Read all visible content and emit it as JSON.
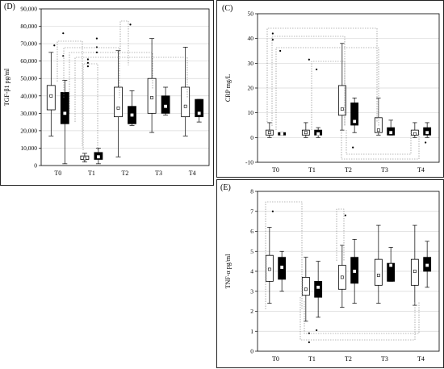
{
  "chart_data": [
    {
      "panel_label": "(D)",
      "type": "box",
      "ylabel": "TGF-β1 pg/ml",
      "ylim": [
        0,
        90000
      ],
      "yticks": [
        0,
        10000,
        20000,
        30000,
        40000,
        50000,
        60000,
        70000,
        80000,
        90000
      ],
      "ytick_labels": [
        "0",
        "10,000",
        "20,000",
        "30,000",
        "40,000",
        "50,000",
        "60,000",
        "70,000",
        "80,000",
        "90,000"
      ],
      "categories": [
        "T0",
        "T1",
        "T2",
        "T3",
        "T4"
      ],
      "grid": true,
      "series": [
        {
          "fill": "#ffffff",
          "boxes": [
            {
              "min": 17000,
              "q1": 32000,
              "median": 40000,
              "q3": 46000,
              "max": 65000,
              "outliers": [
                69000
              ]
            },
            {
              "min": 2000,
              "q1": 3500,
              "median": 4000,
              "q3": 5500,
              "max": 7000,
              "outliers": [
                61000,
                59000,
                57000
              ]
            },
            {
              "min": 5000,
              "q1": 28000,
              "median": 33000,
              "q3": 45000,
              "max": 66000,
              "outliers": []
            },
            {
              "min": 19000,
              "q1": 30000,
              "median": 39000,
              "q3": 50000,
              "max": 73000,
              "outliers": []
            },
            {
              "min": 17000,
              "q1": 28000,
              "median": 34000,
              "q3": 45000,
              "max": 68000,
              "outliers": []
            }
          ]
        },
        {
          "fill": "#000000",
          "boxes": [
            {
              "min": 1000,
              "q1": 24000,
              "median": 30000,
              "q3": 42000,
              "max": 49000,
              "outliers": [
                63000,
                76000
              ]
            },
            {
              "min": 1000,
              "q1": 3500,
              "median": 5000,
              "q3": 7500,
              "max": 10000,
              "outliers": [
                73000,
                68000,
                65000
              ]
            },
            {
              "min": 23000,
              "q1": 24000,
              "median": 29000,
              "q3": 34000,
              "max": 43000,
              "outliers": [
                81000
              ]
            },
            {
              "min": 29000,
              "q1": 30000,
              "median": 34000,
              "q3": 40000,
              "max": 45000,
              "outliers": []
            },
            {
              "min": 25000,
              "q1": 28000,
              "median": 30000,
              "q3": 38000,
              "max": 38000,
              "outliers": []
            }
          ]
        }
      ]
    },
    {
      "panel_label": "(C)",
      "type": "box",
      "ylabel": "CRP mg/L",
      "ylim": [
        -10,
        50
      ],
      "yticks": [
        -10,
        0,
        10,
        20,
        30,
        40,
        50
      ],
      "ytick_labels": [
        "-10",
        "0",
        "10",
        "20",
        "30",
        "40",
        "50"
      ],
      "categories": [
        "T0",
        "T1",
        "T2",
        "T3",
        "T4"
      ],
      "grid": true,
      "series": [
        {
          "fill": "#ffffff",
          "boxes": [
            {
              "min": 0,
              "q1": 1,
              "median": 2,
              "q3": 3,
              "max": 6,
              "outliers": [
                42,
                39.5
              ]
            },
            {
              "min": 0,
              "q1": 1,
              "median": 2,
              "q3": 3,
              "max": 6,
              "outliers": [
                31.5
              ]
            },
            {
              "min": 3,
              "q1": 9,
              "median": 11.5,
              "q3": 21,
              "max": 38,
              "outliers": []
            },
            {
              "min": 1,
              "q1": 2,
              "median": 3,
              "q3": 8,
              "max": 16,
              "outliers": []
            },
            {
              "min": 0,
              "q1": 1,
              "median": 1.5,
              "q3": 3,
              "max": 6,
              "outliers": []
            }
          ]
        },
        {
          "fill": "#000000",
          "boxes": [
            {
              "min": 1,
              "q1": 1,
              "median": 1.5,
              "q3": 2,
              "max": 2,
              "outliers": [
                35
              ]
            },
            {
              "min": 0,
              "q1": 1,
              "median": 1.5,
              "q3": 3,
              "max": 4,
              "outliers": [
                27.5
              ]
            },
            {
              "min": 2,
              "q1": 5,
              "median": 6.5,
              "q3": 14,
              "max": 16,
              "outliers": [
                -4
              ]
            },
            {
              "min": 1,
              "q1": 1,
              "median": 2,
              "q3": 4,
              "max": 7,
              "outliers": []
            },
            {
              "min": 0,
              "q1": 1,
              "median": 2,
              "q3": 4,
              "max": 6,
              "outliers": [
                -2
              ]
            }
          ]
        }
      ]
    },
    {
      "panel_label": "(E)",
      "type": "box",
      "ylabel": "TNF-α  pg/ml",
      "ylim": [
        0,
        8
      ],
      "yticks": [
        0,
        1,
        2,
        3,
        4,
        5,
        6,
        7,
        8
      ],
      "ytick_labels": [
        "0",
        "1",
        "2",
        "3",
        "4",
        "5",
        "6",
        "7",
        "8"
      ],
      "categories": [
        "T0",
        "T1",
        "T2",
        "T3",
        "T4"
      ],
      "grid": true,
      "series": [
        {
          "fill": "#ffffff",
          "boxes": [
            {
              "min": 2.4,
              "q1": 3.5,
              "median": 4.1,
              "q3": 4.8,
              "max": 6.2,
              "outliers": [
                7.0
              ]
            },
            {
              "min": 1.5,
              "q1": 2.8,
              "median": 3.1,
              "q3": 3.7,
              "max": 4.7,
              "outliers": [
                0.9,
                0.45
              ]
            },
            {
              "min": 2.2,
              "q1": 3.1,
              "median": 3.7,
              "q3": 4.3,
              "max": 5.3,
              "outliers": [
                6.8
              ]
            },
            {
              "min": 2.4,
              "q1": 3.3,
              "median": 3.8,
              "q3": 4.6,
              "max": 6.3,
              "outliers": []
            },
            {
              "min": 2.3,
              "q1": 3.3,
              "median": 4.0,
              "q3": 4.6,
              "max": 6.3,
              "outliers": []
            }
          ]
        },
        {
          "fill": "#000000",
          "boxes": [
            {
              "min": 3.0,
              "q1": 3.6,
              "median": 4.2,
              "q3": 4.7,
              "max": 5.0,
              "outliers": []
            },
            {
              "min": 1.7,
              "q1": 2.7,
              "median": 3.2,
              "q3": 3.5,
              "max": 4.5,
              "outliers": [
                1.05
              ]
            },
            {
              "min": 2.4,
              "q1": 3.4,
              "median": 4.0,
              "q3": 4.7,
              "max": 5.6,
              "outliers": []
            },
            {
              "min": 3.5,
              "q1": 3.5,
              "median": 4.3,
              "q3": 4.4,
              "max": 5.2,
              "outliers": []
            },
            {
              "min": 3.2,
              "q1": 4.0,
              "median": 4.3,
              "q3": 4.7,
              "max": 5.5,
              "outliers": []
            }
          ]
        }
      ]
    }
  ]
}
